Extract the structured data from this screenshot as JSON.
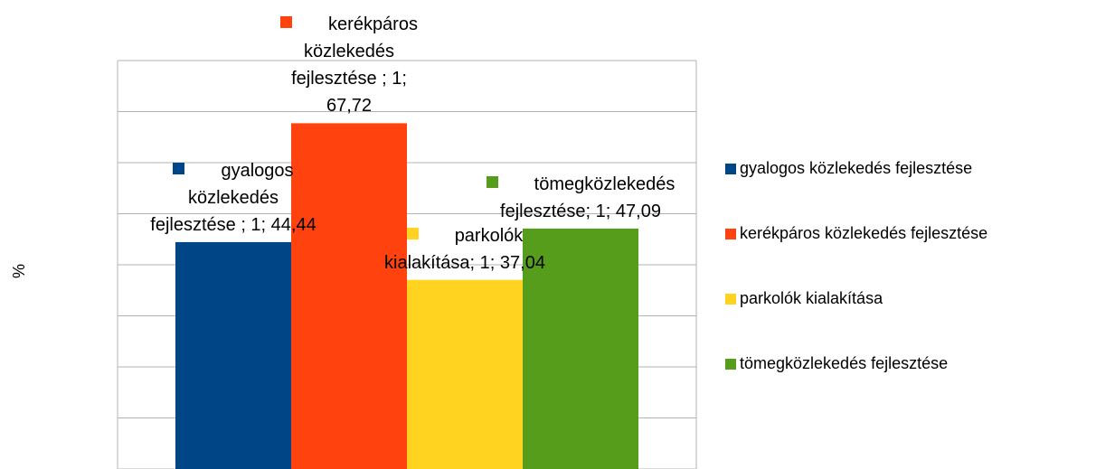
{
  "chart_data": {
    "type": "bar",
    "y_label": "%",
    "categories": [
      "1"
    ],
    "series": [
      {
        "name": "gyalogos közlekedés fejlesztése",
        "color": "#004586",
        "values": [
          44.44
        ],
        "value_labels": [
          "gyalogos közlekedés fejlesztése ; 1; 44,44"
        ]
      },
      {
        "name": "kerékpáros közlekedés fejlesztése",
        "color": "#ff420e",
        "values": [
          67.72
        ],
        "value_labels": [
          "kerékpáros közlekedés fejlesztése ; 1; 67,72"
        ]
      },
      {
        "name": "parkolók kialakítása",
        "color": "#ffd320",
        "values": [
          37.04
        ],
        "value_labels": [
          "parkolók kialakítása; 1; 37,04"
        ]
      },
      {
        "name": "tömegközlekedés fejlesztése",
        "color": "#579d1c",
        "values": [
          47.09
        ],
        "value_labels": [
          "tömegközlekedés fejlesztése; 1; 47,09"
        ]
      }
    ],
    "ylim": [
      0,
      80
    ],
    "yticks": [
      0,
      10,
      20,
      30,
      40,
      50,
      60,
      70,
      80
    ],
    "grid": true,
    "legend": "right"
  }
}
